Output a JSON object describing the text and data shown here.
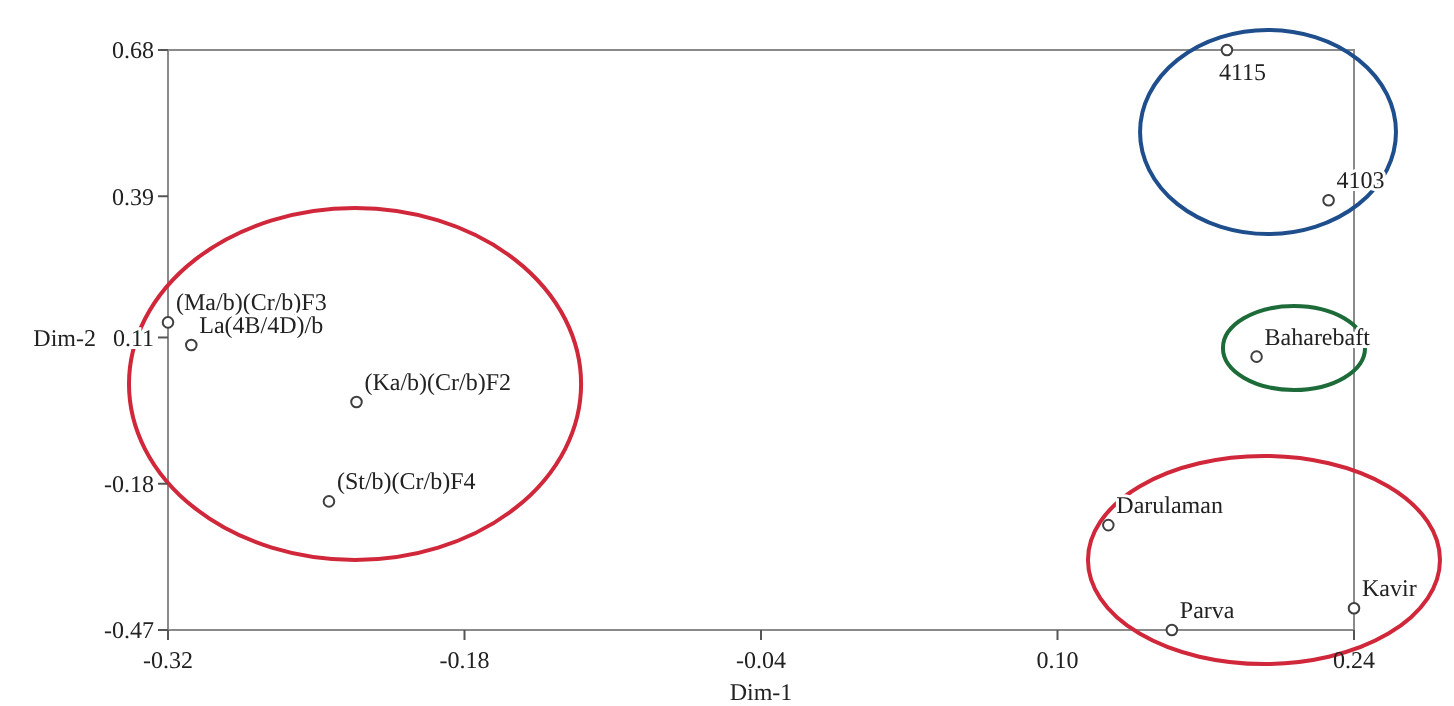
{
  "chart_data": {
    "type": "scatter",
    "xlabel": "Dim-1",
    "ylabel": "Dim-2",
    "xlim": [
      -0.32,
      0.24
    ],
    "xticks": [
      -0.32,
      -0.18,
      -0.04,
      {
        "value": 0.1,
        "label": "0.10"
      },
      0.24
    ],
    "ylim": [
      -0.47,
      0.68
    ],
    "yticks": [
      -0.47,
      -0.18,
      0.11,
      0.39,
      0.68
    ],
    "marker": "circle",
    "series": [
      {
        "color": "#404040",
        "x": [
          -0.32,
          -0.309,
          -0.231,
          -0.244,
          0.18,
          0.228,
          0.194,
          0.124,
          0.154,
          0.24
        ],
        "values": [
          0.14,
          0.095,
          -0.018,
          -0.215,
          0.68,
          0.382,
          0.072,
          -0.262,
          -0.47,
          -0.427
        ]
      }
    ],
    "annotations": [
      {
        "text": "(Ma/b)(Cr/b)F3",
        "x": -0.32,
        "y": 0.14
      },
      {
        "text": "La(4B/4D)/b",
        "x": -0.309,
        "y": 0.095
      },
      {
        "text": "(Ka/b)(Cr/b)F2",
        "x": -0.231,
        "y": -0.018
      },
      {
        "text": "(St/b)(Cr/b)F4",
        "x": -0.244,
        "y": -0.215
      },
      {
        "text": "4115",
        "x": 0.18,
        "y": 0.68
      },
      {
        "text": "4103",
        "x": 0.228,
        "y": 0.382
      },
      {
        "text": "Baharebaft",
        "x": 0.194,
        "y": 0.072
      },
      {
        "text": "Darulaman",
        "x": 0.124,
        "y": -0.262
      },
      {
        "text": "Parva",
        "x": 0.154,
        "y": -0.47
      },
      {
        "text": "Kavir",
        "x": 0.24,
        "y": -0.427
      }
    ]
  }
}
